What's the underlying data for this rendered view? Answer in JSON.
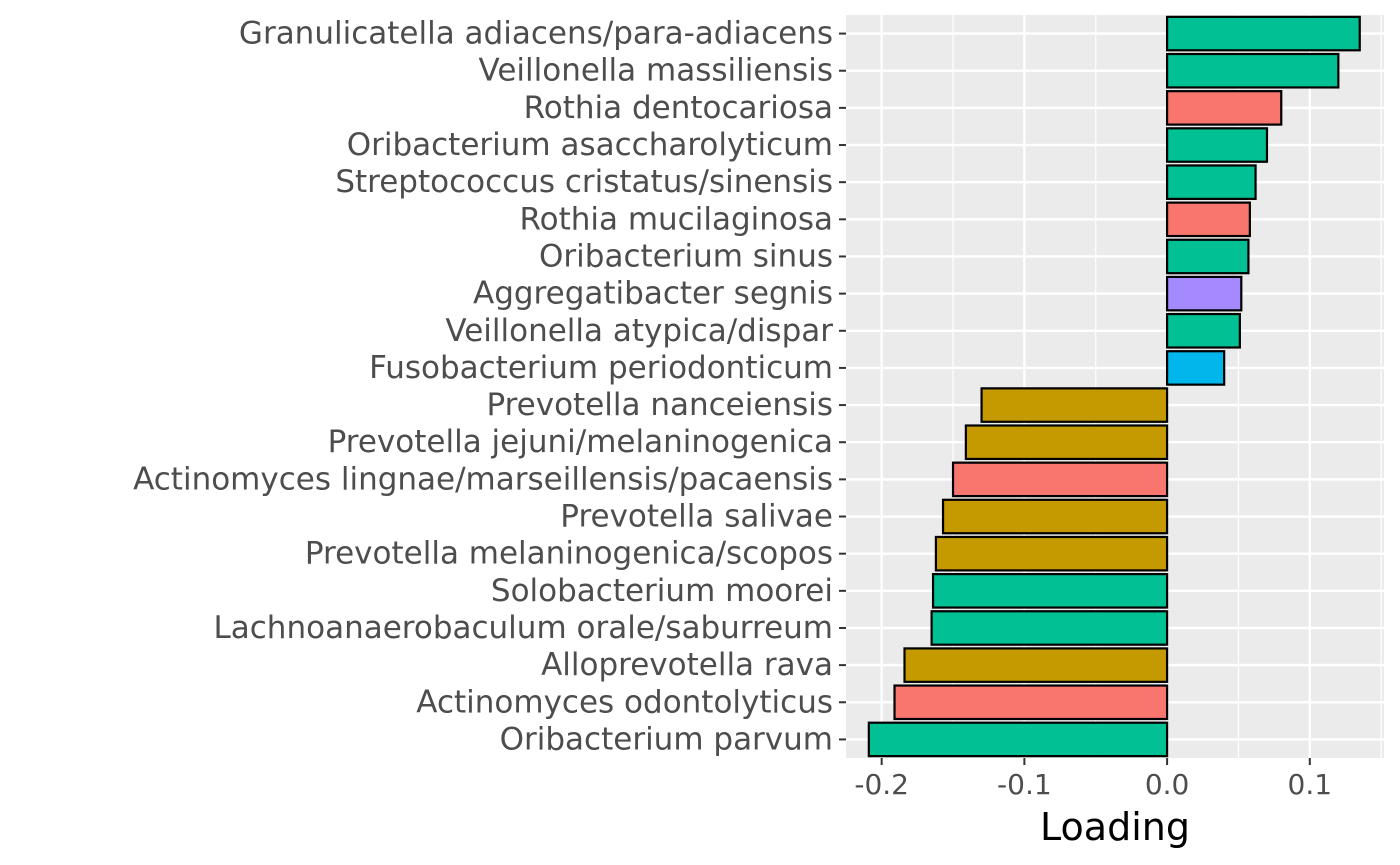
{
  "chart_data": {
    "type": "bar",
    "orientation": "horizontal",
    "xlabel": "Loading",
    "ylabel": "",
    "title": "",
    "xlim": [
      -0.225,
      0.152
    ],
    "xticks": [
      -0.2,
      -0.1,
      0.0,
      0.1
    ],
    "xtick_labels": [
      "-0.2",
      "-0.1",
      "0.0",
      "0.1"
    ],
    "grid": true,
    "legend": "none",
    "background_color": "#ebebeb",
    "bars": [
      {
        "label": "Granulicatella adiacens/para-adiacens",
        "value": 0.135,
        "color": "#00c094"
      },
      {
        "label": "Veillonella massiliensis",
        "value": 0.12,
        "color": "#00c094"
      },
      {
        "label": "Rothia dentocariosa",
        "value": 0.08,
        "color": "#f8766d"
      },
      {
        "label": "Oribacterium asaccharolyticum",
        "value": 0.07,
        "color": "#00c094"
      },
      {
        "label": "Streptococcus cristatus/sinensis",
        "value": 0.062,
        "color": "#00c094"
      },
      {
        "label": "Rothia mucilaginosa",
        "value": 0.058,
        "color": "#f8766d"
      },
      {
        "label": "Oribacterium sinus",
        "value": 0.057,
        "color": "#00c094"
      },
      {
        "label": "Aggregatibacter segnis",
        "value": 0.052,
        "color": "#a58aff"
      },
      {
        "label": "Veillonella atypica/dispar",
        "value": 0.051,
        "color": "#00c094"
      },
      {
        "label": "Fusobacterium periodonticum",
        "value": 0.04,
        "color": "#00b6eb"
      },
      {
        "label": "Prevotella nanceiensis",
        "value": -0.13,
        "color": "#c49a00"
      },
      {
        "label": "Prevotella jejuni/melaninogenica",
        "value": -0.141,
        "color": "#c49a00"
      },
      {
        "label": "Actinomyces lingnae/marseillensis/pacaensis",
        "value": -0.15,
        "color": "#f8766d"
      },
      {
        "label": "Prevotella salivae",
        "value": -0.157,
        "color": "#c49a00"
      },
      {
        "label": "Prevotella melaninogenica/scopos",
        "value": -0.162,
        "color": "#c49a00"
      },
      {
        "label": "Solobacterium moorei",
        "value": -0.164,
        "color": "#00c094"
      },
      {
        "label": "Lachnoanaerobaculum orale/saburreum",
        "value": -0.165,
        "color": "#00c094"
      },
      {
        "label": "Alloprevotella rava",
        "value": -0.184,
        "color": "#c49a00"
      },
      {
        "label": "Actinomyces odontolyticus",
        "value": -0.191,
        "color": "#f8766d"
      },
      {
        "label": "Oribacterium parvum",
        "value": -0.209,
        "color": "#00c094"
      }
    ]
  }
}
